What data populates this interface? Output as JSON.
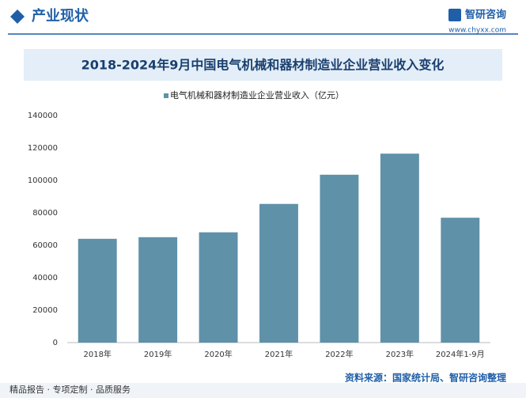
{
  "header": {
    "section": "产业现状",
    "brand": "智研咨询",
    "url": "www.chyxx.com"
  },
  "chart_data": {
    "type": "bar",
    "title": "2018-2024年9月中国电气机械和器材制造业企业营业收入变化",
    "categories": [
      "2018年",
      "2019年",
      "2020年",
      "2021年",
      "2022年",
      "2023年",
      "2024年1-9月"
    ],
    "series": [
      {
        "name": "电气机械和器材制造业企业营业收入（亿元）",
        "color": "#5f91a9",
        "values": [
          64000,
          65000,
          68000,
          85500,
          103500,
          116500,
          77000
        ]
      }
    ],
    "ylim": [
      0,
      140000
    ],
    "yticks": [
      0,
      20000,
      40000,
      60000,
      80000,
      100000,
      120000,
      140000
    ],
    "grid": false
  },
  "source": "资料来源：国家统计局、智研咨询整理",
  "footer": "精品报告 · 专项定制 · 品质服务"
}
